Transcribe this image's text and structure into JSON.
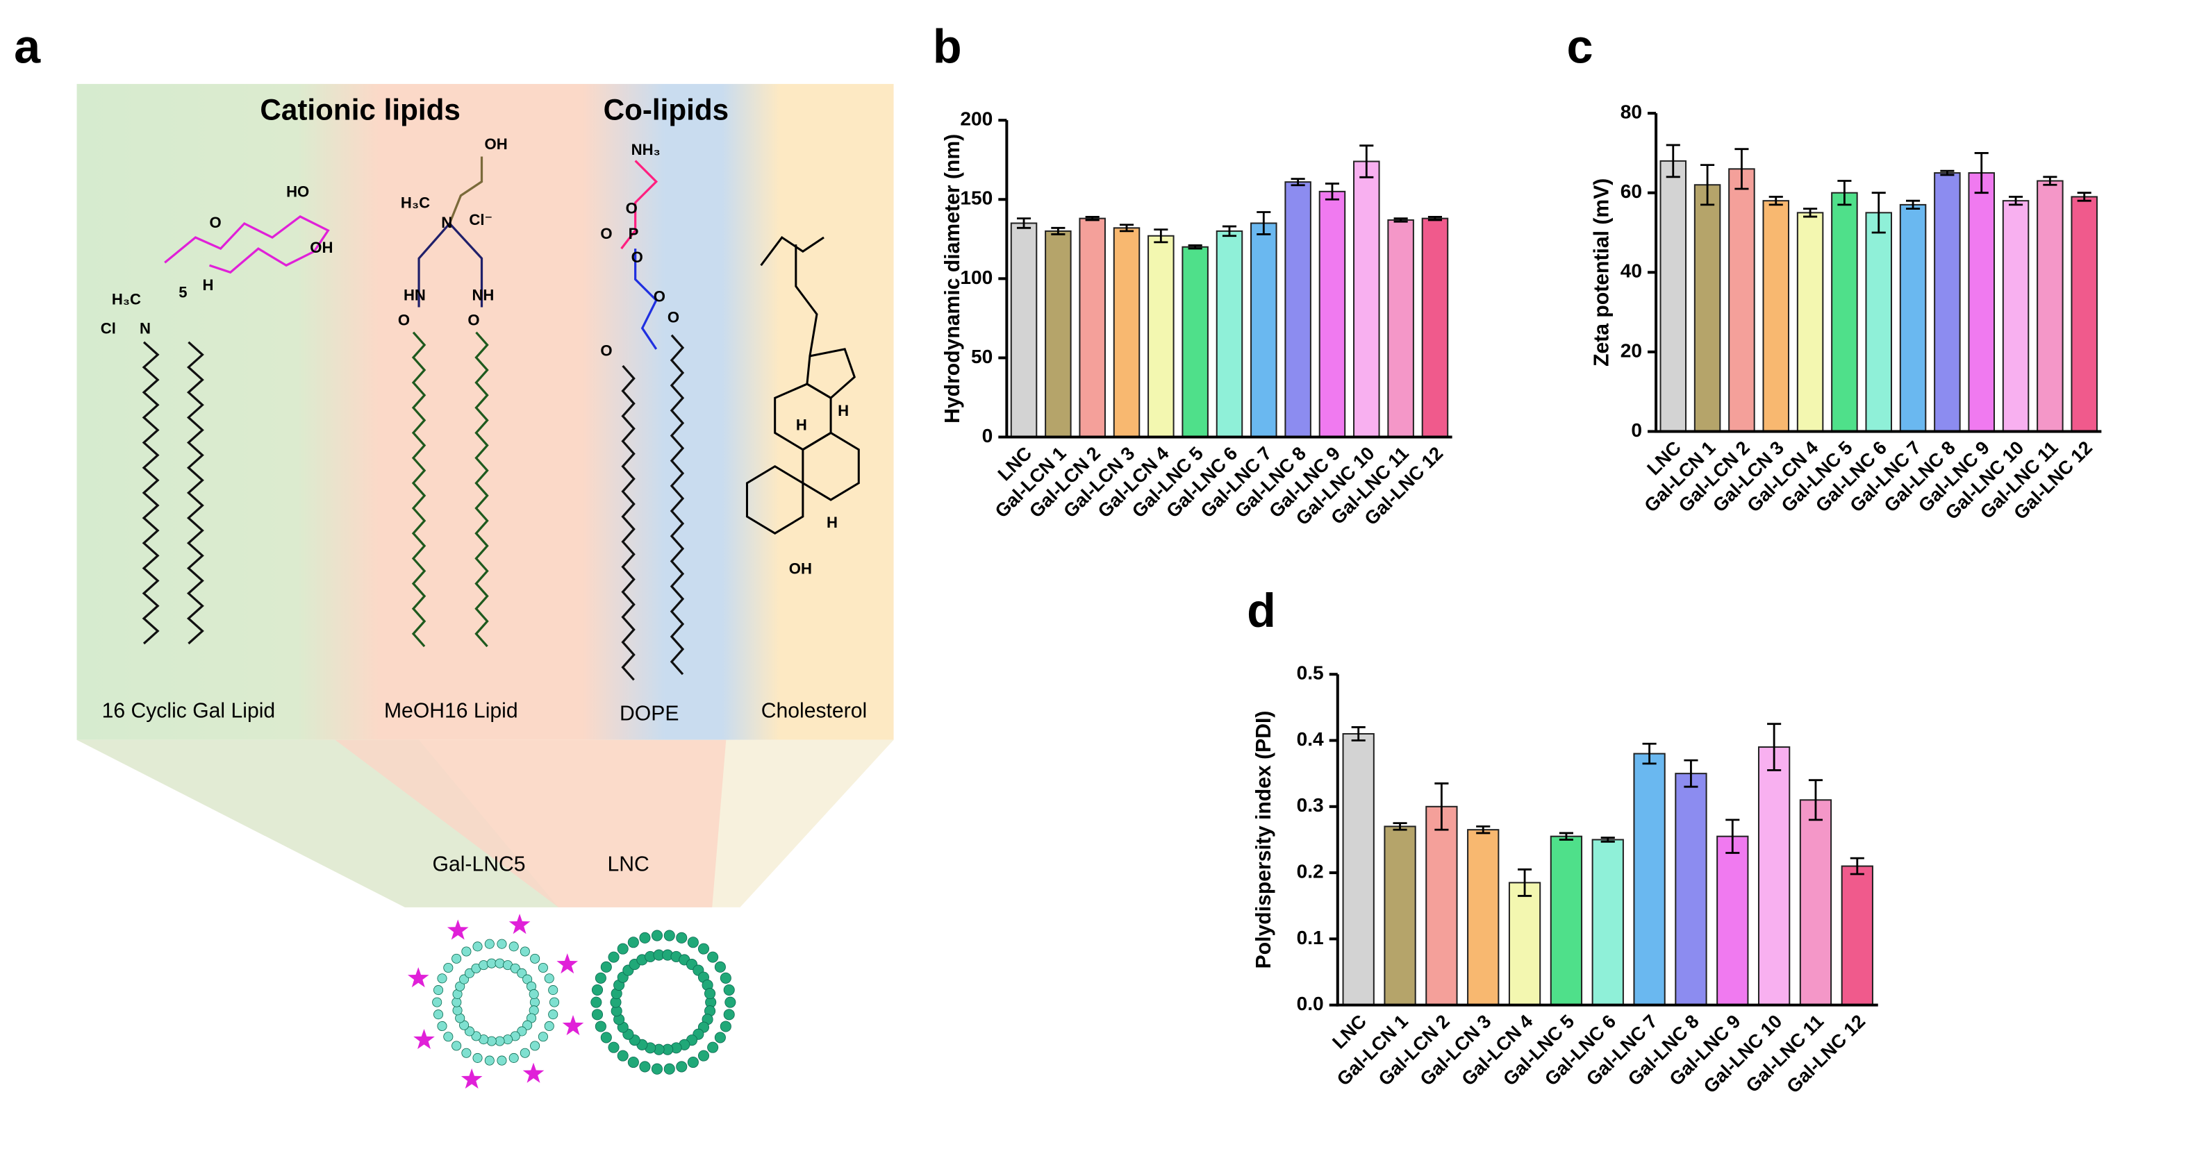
{
  "chart_data": [
    {
      "type": "bar",
      "panel": "b",
      "y_label": "Hydrodynamic diameter (nm)",
      "categories": [
        "LNC",
        "Gal-LCN 1",
        "Gal-LCN 2",
        "Gal-LCN 3",
        "Gal-LCN 4",
        "Gal-LNC 5",
        "Gal-LNC 6",
        "Gal-LNC 7",
        "Gal-LNC 8",
        "Gal-LNC 9",
        "Gal-LNC 10",
        "Gal-LNC 11",
        "Gal-LNC 12"
      ],
      "values": [
        135,
        130,
        138,
        132,
        127,
        120,
        130,
        135,
        161,
        155,
        174,
        137,
        138
      ],
      "errors": [
        3,
        2,
        1,
        2,
        4,
        1,
        3,
        7,
        2,
        5,
        10,
        1,
        1
      ],
      "colors": [
        "#d3d3d3",
        "#b5a46a",
        "#f4a09a",
        "#f8b870",
        "#f3f7b0",
        "#4fe08a",
        "#8ff0d8",
        "#6ab8f0",
        "#8c8cf0",
        "#f07af0",
        "#f8b0f0",
        "#f497c8",
        "#f05a8c"
      ],
      "ylim": [
        0,
        200
      ],
      "yticks": [
        0,
        50,
        100,
        150,
        200
      ]
    },
    {
      "type": "bar",
      "panel": "c",
      "y_label": "Zeta potential (mV)",
      "categories": [
        "LNC",
        "Gal-LCN 1",
        "Gal-LCN 2",
        "Gal-LCN 3",
        "Gal-LCN 4",
        "Gal-LNC 5",
        "Gal-LNC 6",
        "Gal-LNC 7",
        "Gal-LNC 8",
        "Gal-LNC 9",
        "Gal-LNC 10",
        "Gal-LNC 11",
        "Gal-LNC 12"
      ],
      "values": [
        68,
        62,
        66,
        58,
        55,
        60,
        55,
        57,
        65,
        65,
        58,
        63,
        59
      ],
      "errors": [
        4,
        5,
        5,
        1,
        1,
        3,
        5,
        1,
        0.5,
        5,
        1,
        1,
        1
      ],
      "colors": [
        "#d3d3d3",
        "#b5a46a",
        "#f4a09a",
        "#f8b870",
        "#f3f7b0",
        "#4fe08a",
        "#8ff0d8",
        "#6ab8f0",
        "#8c8cf0",
        "#f07af0",
        "#f8b0f0",
        "#f497c8",
        "#f05a8c"
      ],
      "ylim": [
        0,
        80
      ],
      "yticks": [
        0,
        20,
        40,
        60,
        80
      ]
    },
    {
      "type": "bar",
      "panel": "d",
      "y_label": "Polydispersity index (PDI)",
      "categories": [
        "LNC",
        "Gal-LCN 1",
        "Gal-LCN 2",
        "Gal-LCN 3",
        "Gal-LCN 4",
        "Gal-LNC 5",
        "Gal-LNC 6",
        "Gal-LNC 7",
        "Gal-LNC 8",
        "Gal-LNC 9",
        "Gal-LNC 10",
        "Gal-LNC 11",
        "Gal-LNC 12"
      ],
      "values": [
        0.41,
        0.27,
        0.3,
        0.265,
        0.185,
        0.255,
        0.25,
        0.38,
        0.35,
        0.255,
        0.39,
        0.31,
        0.21
      ],
      "errors": [
        0.01,
        0.005,
        0.035,
        0.005,
        0.02,
        0.005,
        0.003,
        0.015,
        0.02,
        0.025,
        0.035,
        0.03,
        0.012
      ],
      "colors": [
        "#d3d3d3",
        "#b5a46a",
        "#f4a09a",
        "#f8b870",
        "#f3f7b0",
        "#4fe08a",
        "#8ff0d8",
        "#6ab8f0",
        "#8c8cf0",
        "#f07af0",
        "#f8b0f0",
        "#f497c8",
        "#f05a8c"
      ],
      "ylim": [
        0,
        0.5
      ],
      "yticks": [
        {
          "value": 0,
          "label": "0.0"
        },
        0.1,
        0.2,
        0.3,
        0.4,
        0.5
      ]
    }
  ],
  "diagram": {
    "panel": "a",
    "group_1": "Cationic lipids",
    "group_2": "Co-lipids",
    "lipids": [
      "16 Cyclic Gal Lipid",
      "MeOH16 Lipid",
      "DOPE",
      "Cholesterol"
    ],
    "particles": [
      "Gal-LNC5",
      "LNC"
    ],
    "atoms": [
      "HO",
      "OH",
      "O",
      "H",
      "H₃C",
      "N",
      "Cl",
      "5",
      "OH",
      "H₃C",
      "N",
      "Cl⁻",
      "HN",
      "NH",
      "O",
      "O",
      "NH₃",
      "O",
      "P",
      "O",
      "O",
      "O",
      "O",
      "O",
      "OH",
      "H",
      "H",
      "H"
    ]
  }
}
